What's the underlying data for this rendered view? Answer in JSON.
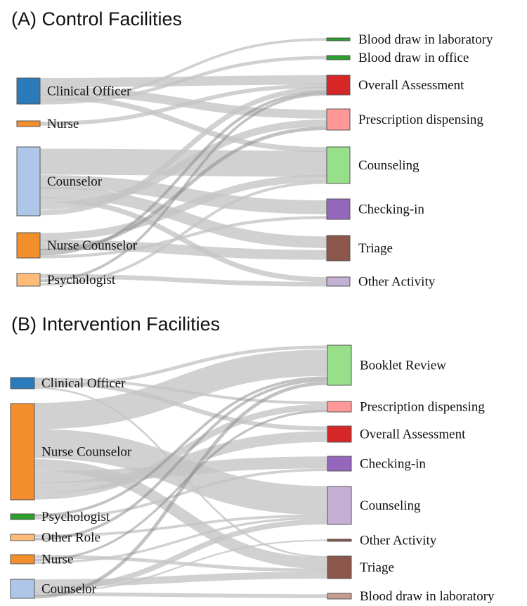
{
  "panels": [
    {
      "id": "A",
      "title": "(A) Control Facilities",
      "sources": [
        {
          "label": "Clinical Officer",
          "color": "#2b7bba"
        },
        {
          "label": "Nurse",
          "color": "#f28e2b"
        },
        {
          "label": "Counselor",
          "color": "#aec7e8"
        },
        {
          "label": "Nurse Counselor",
          "color": "#f28e2b"
        },
        {
          "label": "Psychologist",
          "color": "#ffbb78"
        }
      ],
      "targets": [
        {
          "label": "Blood draw in laboratory",
          "color": "#2ca02c"
        },
        {
          "label": "Blood draw in office",
          "color": "#2ca02c"
        },
        {
          "label": "Overall Assessment",
          "color": "#d62728"
        },
        {
          "label": "Prescription dispensing",
          "color": "#ff9896"
        },
        {
          "label": "Counseling",
          "color": "#98df8a"
        },
        {
          "label": "Checking-in",
          "color": "#9467bd"
        },
        {
          "label": "Triage",
          "color": "#8c564b"
        },
        {
          "label": "Other Activity",
          "color": "#c5b0d5"
        }
      ]
    },
    {
      "id": "B",
      "title": "(B) Intervention Facilities",
      "sources": [
        {
          "label": "Clinical Officer",
          "color": "#2b7bba"
        },
        {
          "label": "Nurse Counselor",
          "color": "#f28e2b"
        },
        {
          "label": "Psychologist",
          "color": "#2ca02c"
        },
        {
          "label": "Other Role",
          "color": "#ffbb78"
        },
        {
          "label": "Nurse",
          "color": "#f28e2b"
        },
        {
          "label": "Counselor",
          "color": "#aec7e8"
        }
      ],
      "targets": [
        {
          "label": "Booklet Review",
          "color": "#98df8a"
        },
        {
          "label": "Prescription dispensing",
          "color": "#ff9896"
        },
        {
          "label": "Overall Assessment",
          "color": "#d62728"
        },
        {
          "label": "Checking-in",
          "color": "#9467bd"
        },
        {
          "label": "Counseling",
          "color": "#c5b0d5"
        },
        {
          "label": "Other Activity",
          "color": "#8c564b"
        },
        {
          "label": "Triage",
          "color": "#8c564b"
        },
        {
          "label": "Blood draw in laboratory",
          "color": "#c49c94"
        }
      ]
    }
  ]
}
